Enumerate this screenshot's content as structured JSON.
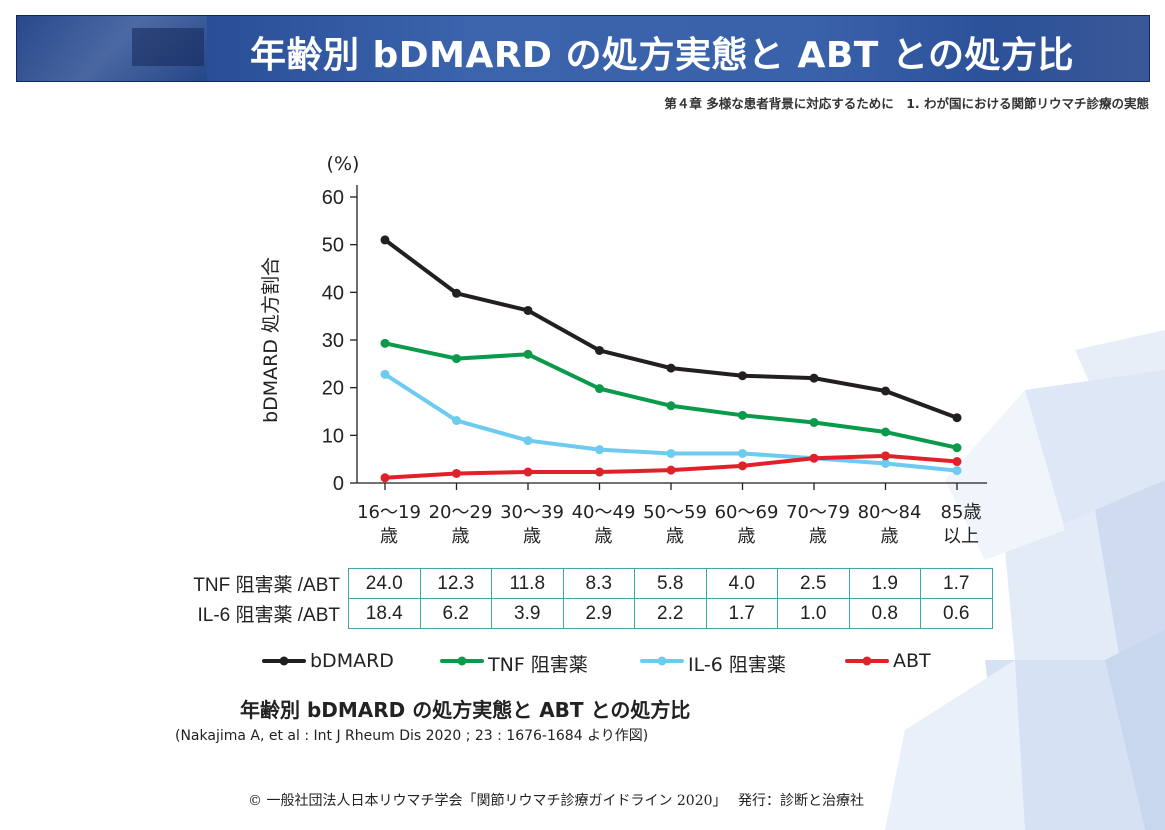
{
  "header": {
    "title": "年齢別 bDMARD の処方実態と ABT との処方比",
    "chapter": "第４章 多様な患者背景に対応するために　1.  わが国における関節リウマチ診療の実態"
  },
  "chart_data": {
    "type": "line",
    "unit_label": "(%)",
    "ylabel": "bDMARD 処方割合",
    "ylim": [
      0,
      60
    ],
    "yticks": [
      0,
      10,
      20,
      30,
      40,
      50,
      60
    ],
    "categories": [
      [
        "16～19",
        "歳"
      ],
      [
        "20～29",
        "歳"
      ],
      [
        "30～39",
        "歳"
      ],
      [
        "40～49",
        "歳"
      ],
      [
        "50～59",
        "歳"
      ],
      [
        "60～69",
        "歳"
      ],
      [
        "70～79",
        "歳"
      ],
      [
        "80～84",
        "歳"
      ],
      [
        "85歳",
        "以上"
      ]
    ],
    "series": [
      {
        "name": "bDMARD",
        "color": "#231f20",
        "values": [
          51.0,
          39.8,
          36.2,
          27.8,
          24.1,
          22.5,
          22.0,
          19.3,
          13.7
        ]
      },
      {
        "name": "TNF 阻害薬",
        "color": "#0a9a4c",
        "values": [
          29.3,
          26.1,
          27.0,
          19.8,
          16.2,
          14.2,
          12.7,
          10.7,
          7.4
        ]
      },
      {
        "name": "IL-6 阻害薬",
        "color": "#6ccbef",
        "values": [
          22.8,
          13.1,
          8.9,
          7.0,
          6.2,
          6.2,
          5.2,
          4.1,
          2.6
        ]
      },
      {
        "name": "ABT",
        "color": "#e0212a",
        "values": [
          1.1,
          2.0,
          2.3,
          2.3,
          2.7,
          3.6,
          5.2,
          5.7,
          4.5
        ]
      }
    ],
    "legend_position": "bottom",
    "grid": false
  },
  "ratio_table": {
    "rows": [
      {
        "label": "TNF 阻害薬 /ABT",
        "values": [
          "24.0",
          "12.3",
          "11.8",
          "8.3",
          "5.8",
          "4.0",
          "2.5",
          "1.9",
          "1.7"
        ]
      },
      {
        "label": "IL-6 阻害薬 /ABT",
        "values": [
          "18.4",
          "6.2",
          "3.9",
          "2.9",
          "2.2",
          "1.7",
          "1.0",
          "0.8",
          "0.6"
        ]
      }
    ]
  },
  "caption": "年齢別 bDMARD の処方実態と ABT との処方比",
  "source": "(Nakajima A, et al : Int J Rheum Dis 2020 ; 23 : 1676-1684 より作図)",
  "footer": "© 一般社団法人日本リウマチ学会「関節リウマチ診療ガイドライン 2020」　  発行：診断と治療社"
}
